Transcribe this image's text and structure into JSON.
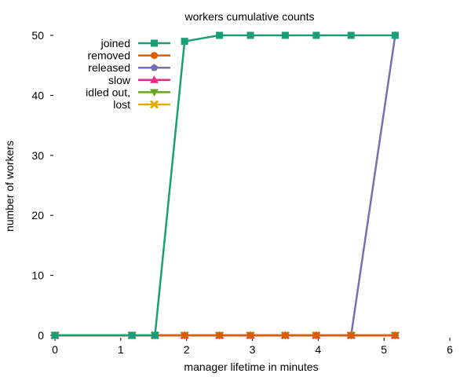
{
  "chart_data": {
    "type": "line",
    "title": "workers cumulative counts",
    "xlabel": "manager lifetime in minutes",
    "ylabel": "number of workers",
    "xlim": [
      0,
      6
    ],
    "ylim": [
      0,
      50
    ],
    "x_ticks": [
      0,
      1,
      2,
      3,
      4,
      5,
      6
    ],
    "y_ticks": [
      0,
      10,
      20,
      30,
      40,
      50
    ],
    "grid": false,
    "legend_position": "top-left",
    "series": [
      {
        "name": "joined",
        "color": "#1b9e77",
        "marker": "square",
        "x": [
          0,
          1.17,
          1.52,
          1.97,
          2.5,
          2.97,
          3.5,
          3.97,
          4.5,
          5.17
        ],
        "y": [
          0,
          0,
          0,
          49,
          50,
          50,
          50,
          50,
          50,
          50
        ]
      },
      {
        "name": "removed",
        "color": "#d95f02",
        "marker": "circle",
        "x": [
          0,
          1.17,
          1.52,
          1.97,
          2.5,
          2.97,
          3.5,
          3.97,
          4.5,
          5.17
        ],
        "y": [
          0,
          0,
          0,
          0,
          0,
          0,
          0,
          0,
          0,
          0
        ]
      },
      {
        "name": "released",
        "color": "#7570b3",
        "marker": "pentagon",
        "x": [
          0,
          1.17,
          1.52,
          1.97,
          2.5,
          2.97,
          3.5,
          3.97,
          4.5,
          5.17
        ],
        "y": [
          0,
          0,
          0,
          0,
          0,
          0,
          0,
          0,
          0,
          50
        ]
      },
      {
        "name": "slow",
        "color": "#e7298a",
        "marker": "triangle-up",
        "x": [
          0,
          1.17,
          1.52,
          1.97,
          2.5,
          2.97,
          3.5,
          3.97,
          4.5,
          5.17
        ],
        "y": [
          0,
          0,
          0,
          0,
          0,
          0,
          0,
          0,
          0,
          0
        ]
      },
      {
        "name": "idled out,",
        "color": "#66a61e",
        "marker": "triangle-down",
        "x": [
          0,
          1.17,
          1.52,
          1.97,
          2.5,
          2.97,
          3.5,
          3.97,
          4.5,
          5.17
        ],
        "y": [
          0,
          0,
          0,
          0,
          0,
          0,
          0,
          0,
          0,
          0
        ]
      },
      {
        "name": "lost",
        "color": "#e6ab02",
        "marker": "x",
        "x": [
          0,
          1.17,
          1.52,
          1.97,
          2.5,
          2.97,
          3.5,
          3.97,
          4.5,
          5.17
        ],
        "y": [
          0,
          0,
          0,
          0,
          0,
          0,
          0,
          0,
          0,
          0
        ]
      }
    ]
  }
}
